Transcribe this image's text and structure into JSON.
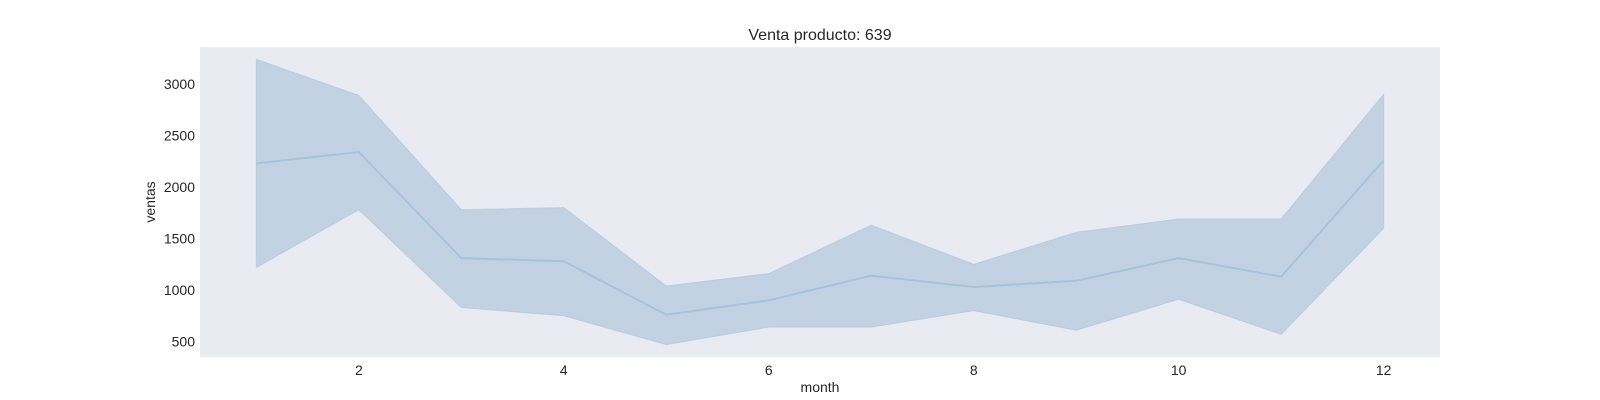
{
  "chart_data": {
    "type": "area",
    "title": "Venta producto: 639",
    "xlabel": "month",
    "ylabel": "ventas",
    "xlim": [
      0.45,
      12.55
    ],
    "ylim": [
      350,
      3360
    ],
    "x_ticks": [
      2,
      4,
      6,
      8,
      10,
      12
    ],
    "y_ticks": [
      500,
      1000,
      1500,
      2000,
      2500,
      3000
    ],
    "grid": false,
    "x": [
      1,
      2,
      3,
      4,
      5,
      6,
      7,
      8,
      9,
      10,
      11,
      12
    ],
    "series": [
      {
        "values": [
          2230,
          2340,
          1310,
          1280,
          760,
          900,
          1140,
          1030,
          1090,
          1310,
          1130,
          2260
        ],
        "lower": [
          1220,
          1780,
          830,
          750,
          470,
          640,
          640,
          800,
          610,
          910,
          570,
          1600
        ],
        "upper": [
          3240,
          2890,
          1780,
          1800,
          1040,
          1160,
          1630,
          1250,
          1560,
          1690,
          1690,
          2900
        ]
      }
    ],
    "colors": {
      "background": "#eaeaf2",
      "line": "#a6c3dd",
      "band": "#c3d2e3"
    }
  }
}
